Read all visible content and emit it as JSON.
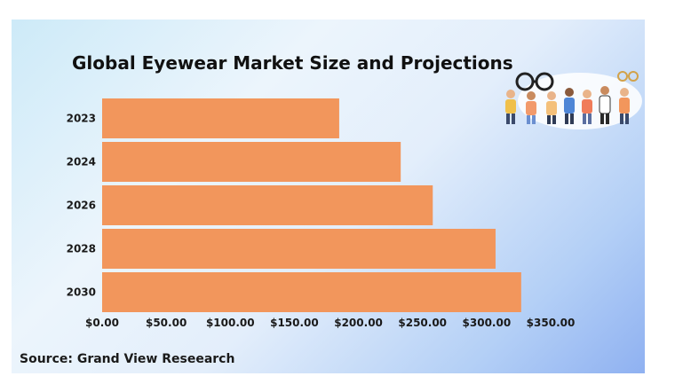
{
  "chart_data": {
    "type": "bar",
    "orientation": "horizontal",
    "title": "Global Eyewear Market Size and Projections",
    "categories": [
      "2023",
      "2024",
      "2026",
      "2028",
      "2030"
    ],
    "values": [
      185,
      233,
      258,
      307,
      327
    ],
    "xlim": [
      0,
      350
    ],
    "xticks": [
      "$0.00",
      "$50.00",
      "$100.00",
      "$150.00",
      "$200.00",
      "$250.00",
      "$300.00",
      "$350.00"
    ],
    "xlabel": "",
    "ylabel": "",
    "grid": false,
    "bar_color": "#f2965c",
    "source": "Source: Grand View Reseearch"
  },
  "decoration": {
    "illustration": "people-holding-glasses-illustration"
  }
}
